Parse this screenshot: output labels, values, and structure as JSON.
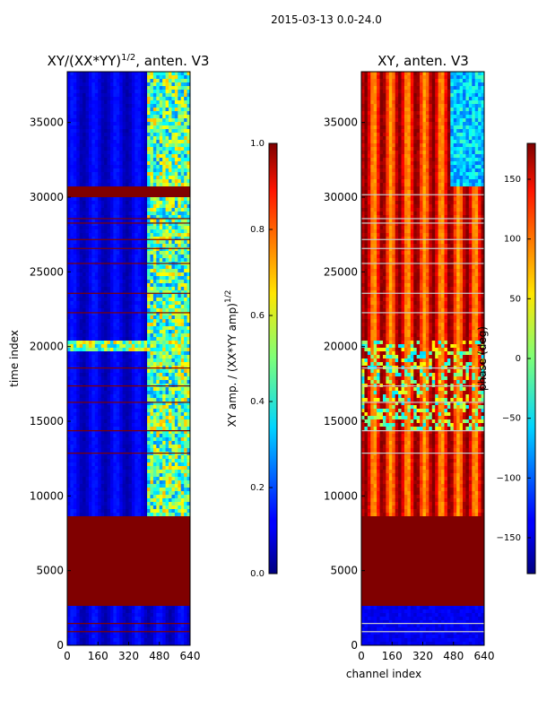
{
  "figure": {
    "suptitle": "2015-03-13 0.0-24.0"
  },
  "chart_data": [
    {
      "type": "heatmap",
      "title": "XY/(XX*YY)",
      "title_exponent": "1/2",
      "title_suffix": ", anten. V3",
      "xlabel": "",
      "ylabel": "time index",
      "xlim": [
        0,
        640
      ],
      "ylim": [
        0,
        38400
      ],
      "xticks": [
        0,
        160,
        320,
        480,
        640
      ],
      "yticks": [
        0,
        5000,
        10000,
        15000,
        20000,
        25000,
        30000,
        35000
      ],
      "colorbar": {
        "label": "XY amp. / (XX*YY amp)",
        "label_exponent": "1/2",
        "range": [
          0.0,
          1.0
        ],
        "ticks": [
          "0.0",
          "0.2",
          "0.4",
          "0.6",
          "0.8",
          "1.0"
        ],
        "colormap": "jet"
      },
      "bands": [
        {
          "from": 0,
          "to": 2600,
          "description": "low amplitude (~0.05) with flagged rows",
          "value": 0.05
        },
        {
          "from": 2600,
          "to": 8600,
          "description": "flagged block (value 1.0)",
          "value": 1.0
        },
        {
          "from": 8600,
          "to": 30000,
          "description": "low amplitude (~0.1), higher (0.3-0.7) at channels 420-640",
          "value": 0.1
        },
        {
          "from": 30000,
          "to": 30700,
          "description": "flagged (value 1.0)",
          "value": 1.0
        },
        {
          "from": 30700,
          "to": 38400,
          "description": "low amplitude (~0.1), higher at channels 420-640",
          "value": 0.1
        }
      ]
    },
    {
      "type": "heatmap",
      "title": "XY, anten. V3",
      "xlabel": "channel index",
      "ylabel": "",
      "xlim": [
        0,
        640
      ],
      "ylim": [
        0,
        38400
      ],
      "xticks": [
        0,
        160,
        320,
        480,
        640
      ],
      "yticks": [
        0,
        5000,
        10000,
        15000,
        20000,
        25000,
        30000,
        35000
      ],
      "colorbar": {
        "label": "phase (deg)",
        "range": [
          -180,
          180
        ],
        "ticks": [
          "−150",
          "−100",
          "−50",
          "0",
          "50",
          "100",
          "150"
        ],
        "colormap": "jet"
      },
      "bands": [
        {
          "from": 0,
          "to": 2600,
          "description": "phase near -150 deg",
          "value": -150
        },
        {
          "from": 2600,
          "to": 8600,
          "description": "flagged block (180 deg)",
          "value": 180
        },
        {
          "from": 8600,
          "to": 38400,
          "description": "phase mostly 100-180 deg with vertical striping",
          "value": 140
        }
      ]
    }
  ]
}
